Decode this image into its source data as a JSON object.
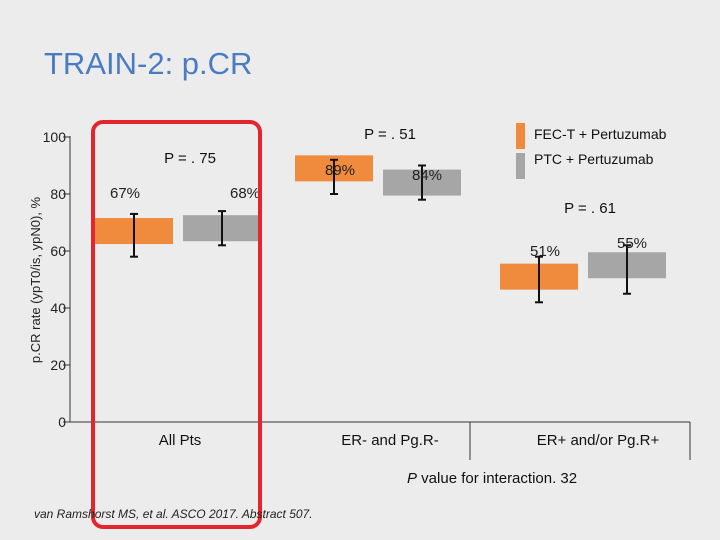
{
  "slide": {
    "title": "TRAIN-2: p.CR"
  },
  "chart_data": {
    "type": "bar",
    "title": "",
    "ylabel": "p.CR rate (ypT0/is, ypN0), %",
    "ylim": [
      0,
      100
    ],
    "yticks": [
      "0",
      "20",
      "40",
      "60",
      "80",
      "100"
    ],
    "categories": [
      "All Pts",
      "ER- and Pg.R-",
      "ER+ and/or Pg.R+"
    ],
    "series": [
      {
        "name": "FEC-T + Pertuzumab",
        "color": "#f08a3c",
        "values": [
          67,
          89,
          51
        ],
        "error_low": [
          58,
          80,
          42
        ],
        "error_high": [
          73,
          92,
          58
        ],
        "labels": [
          "67%",
          "89%",
          "51%"
        ]
      },
      {
        "name": "PTC + Pertuzumab",
        "color": "#a6a6a6",
        "values": [
          68,
          84,
          55
        ],
        "error_low": [
          62,
          78,
          45
        ],
        "error_high": [
          74,
          90,
          62
        ],
        "labels": [
          "68%",
          "84%",
          "55%"
        ]
      }
    ],
    "p_values": [
      "P = . 75",
      "P = . 51",
      "P = . 61"
    ],
    "legend_position": "top-right",
    "interaction_note": {
      "p": "P",
      "text": " value for interaction. 32"
    },
    "citation": "van Ramshorst MS, et al. ASCO 2017. Abstract 507.",
    "highlight": {
      "category": "All Pts",
      "color": "#e3262e"
    }
  }
}
